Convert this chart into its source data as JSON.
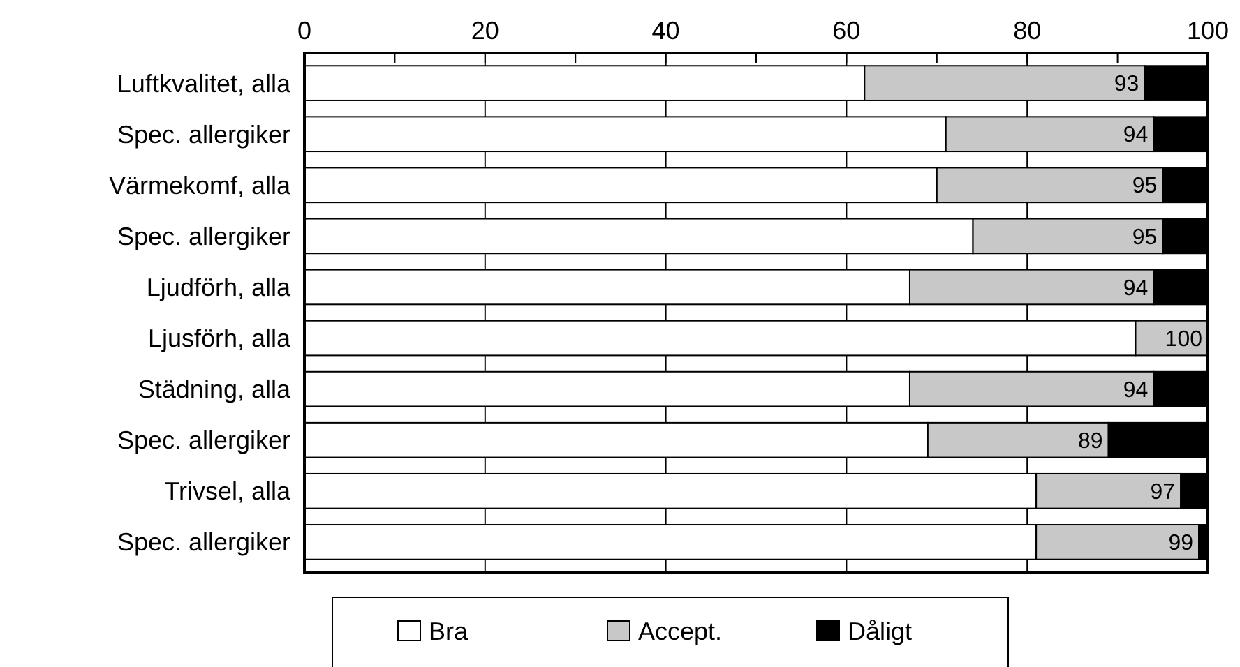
{
  "chart_data": {
    "type": "bar",
    "orientation": "horizontal",
    "stacked": true,
    "categories": [
      "Luftkvalitet, alla",
      "Spec. allergiker",
      "Värmekomf, alla",
      "Spec. allergiker",
      "Ljudförh, alla",
      "Ljusförh, alla",
      "Städning, alla",
      "Spec. allergiker",
      "Trivsel, alla",
      "Spec. allergiker"
    ],
    "series": [
      {
        "name": "Bra",
        "color": "#ffffff",
        "values": [
          62,
          71,
          70,
          74,
          67,
          92,
          67,
          69,
          81,
          81
        ]
      },
      {
        "name": "Accept.",
        "color": "#c8c8c8",
        "values": [
          31,
          23,
          25,
          21,
          27,
          8,
          27,
          20,
          16,
          18
        ]
      },
      {
        "name": "Dåligt",
        "color": "#000000",
        "values": [
          7,
          6,
          5,
          5,
          6,
          0,
          6,
          11,
          3,
          1
        ]
      }
    ],
    "xlim": [
      0,
      100
    ],
    "xticks": [
      0,
      {
        "value": 10,
        "label": null
      },
      20,
      {
        "value": 30,
        "label": null
      },
      40,
      {
        "value": 50,
        "label": null
      },
      60,
      {
        "value": 70,
        "label": null
      },
      80,
      {
        "value": 90,
        "label": null
      },
      100
    ],
    "annotations": [
      "93",
      "94",
      "95",
      "95",
      "94",
      "100",
      "94",
      "89",
      "97",
      "99"
    ],
    "grid": "x",
    "legend": "bottom"
  }
}
